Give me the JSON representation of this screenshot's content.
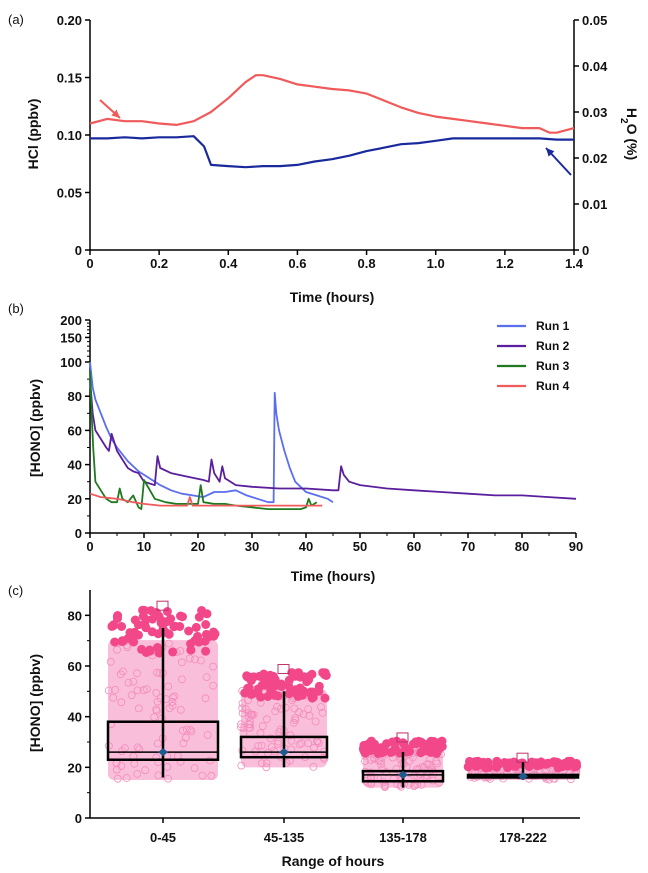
{
  "chart_data": [
    {
      "type": "line",
      "panel_label": "(a)",
      "xlabel": "Time (hours)",
      "ylabel": "HCl (ppbv)",
      "y2label_main": "H",
      "y2label_sub": "2",
      "y2label_rest": "O (%)",
      "xlim": [
        0,
        1.4
      ],
      "ylim": [
        0,
        0.2
      ],
      "y2lim": [
        0,
        0.05
      ],
      "x_ticks": [
        0,
        0.2,
        0.4,
        0.6,
        0.8,
        1.0,
        1.2,
        1.4
      ],
      "x_tick_labels": [
        "0",
        "0.2",
        "0.4",
        "0.6",
        "0.8",
        "1.0",
        "1.2",
        "1.4"
      ],
      "y_ticks": [
        0,
        0.05,
        0.1,
        0.15,
        0.2
      ],
      "y_tick_labels": [
        "0",
        "0.05",
        "0.10",
        "0.15",
        "0.20"
      ],
      "y2_ticks": [
        0,
        0.01,
        0.02,
        0.03,
        0.04,
        0.05
      ],
      "y2_tick_labels": [
        "0",
        "0.01",
        "0.02",
        "0.03",
        "0.04",
        "0.05"
      ],
      "series": [
        {
          "axis": "left",
          "color": "#1a2a9c",
          "x": [
            0,
            0.05,
            0.1,
            0.15,
            0.2,
            0.25,
            0.3,
            0.33,
            0.35,
            0.4,
            0.45,
            0.5,
            0.55,
            0.6,
            0.65,
            0.7,
            0.75,
            0.8,
            0.85,
            0.9,
            0.95,
            1.0,
            1.05,
            1.1,
            1.15,
            1.2,
            1.25,
            1.3,
            1.35,
            1.4
          ],
          "y": [
            0.097,
            0.097,
            0.098,
            0.097,
            0.098,
            0.098,
            0.099,
            0.09,
            0.074,
            0.073,
            0.072,
            0.073,
            0.073,
            0.074,
            0.077,
            0.079,
            0.082,
            0.086,
            0.089,
            0.092,
            0.093,
            0.095,
            0.097,
            0.097,
            0.097,
            0.097,
            0.097,
            0.097,
            0.096,
            0.096
          ]
        },
        {
          "axis": "right",
          "color": "#f05a5a",
          "x": [
            0,
            0.05,
            0.1,
            0.15,
            0.2,
            0.25,
            0.3,
            0.35,
            0.4,
            0.45,
            0.48,
            0.5,
            0.55,
            0.6,
            0.65,
            0.7,
            0.75,
            0.8,
            0.85,
            0.9,
            0.95,
            1.0,
            1.05,
            1.1,
            1.15,
            1.2,
            1.25,
            1.3,
            1.33,
            1.35,
            1.4
          ],
          "y": [
            0.0275,
            0.0285,
            0.028,
            0.028,
            0.0275,
            0.0272,
            0.028,
            0.03,
            0.033,
            0.0365,
            0.038,
            0.038,
            0.0372,
            0.036,
            0.0355,
            0.035,
            0.0347,
            0.034,
            0.0325,
            0.031,
            0.0298,
            0.029,
            0.0285,
            0.028,
            0.0275,
            0.027,
            0.0265,
            0.0265,
            0.0255,
            0.0255,
            0.0265
          ]
        }
      ]
    },
    {
      "type": "line",
      "panel_label": "(b)",
      "xlabel": "Time (hours)",
      "ylabel": "[HONO] (ppbv)",
      "xlim": [
        0,
        90
      ],
      "x_ticks": [
        0,
        10,
        20,
        30,
        40,
        50,
        60,
        70,
        80,
        90
      ],
      "x_tick_labels": [
        "0",
        "10",
        "20",
        "30",
        "40",
        "50",
        "60",
        "70",
        "80",
        "90"
      ],
      "y_scale": "linear below 100, log from 100 to 200",
      "y_tick_labels": [
        "0",
        "20",
        "40",
        "60",
        "80",
        "100",
        "150",
        "200"
      ],
      "legend_position": "top-right outside",
      "series": [
        {
          "name": "Run 1",
          "color": "#5a6ef0",
          "x": [
            0,
            0.5,
            1,
            2,
            3,
            4,
            5,
            7,
            9,
            11,
            13,
            15,
            17,
            19,
            21,
            23,
            25,
            27,
            29,
            31,
            33,
            34,
            34.2,
            34.5,
            35,
            36,
            37,
            38,
            40,
            42,
            44,
            45
          ],
          "y": [
            100,
            85,
            78,
            70,
            62,
            55,
            50,
            42,
            36,
            32,
            28,
            25,
            23,
            22,
            21,
            24,
            24,
            25,
            22,
            20,
            18,
            18,
            82,
            70,
            60,
            48,
            38,
            30,
            24,
            22,
            20,
            18
          ]
        },
        {
          "name": "Run 2",
          "color": "#5a1f9c",
          "x": [
            0,
            0.5,
            1,
            2,
            3,
            3.5,
            4,
            5,
            6,
            7,
            8,
            9,
            10,
            12,
            12.5,
            13,
            15,
            18,
            21,
            22,
            22.5,
            23,
            24,
            24.5,
            25,
            27,
            30,
            35,
            40,
            45,
            46,
            46.5,
            47,
            48,
            50,
            55,
            60,
            65,
            70,
            75,
            80,
            85,
            90
          ],
          "y": [
            90,
            70,
            60,
            55,
            50,
            48,
            58,
            48,
            43,
            38,
            36,
            35,
            30,
            28,
            45,
            38,
            35,
            33,
            31,
            30,
            43,
            35,
            30,
            39,
            32,
            28,
            27,
            26,
            26,
            25,
            25,
            39,
            34,
            30,
            28,
            26,
            25,
            24,
            23,
            22,
            22,
            21,
            20
          ]
        },
        {
          "name": "Run 3",
          "color": "#1f7a1f",
          "x": [
            0,
            0.3,
            0.6,
            1,
            2,
            3,
            4,
            5,
            5.5,
            6,
            7,
            8,
            9,
            9.5,
            10,
            12,
            14,
            16,
            18,
            20,
            20.5,
            21,
            23,
            25,
            27,
            30,
            33,
            36,
            39,
            40,
            40.5,
            41,
            42
          ],
          "y": [
            95,
            70,
            50,
            30,
            25,
            20,
            18,
            18,
            26,
            20,
            18,
            22,
            15,
            14,
            31,
            20,
            18,
            17,
            17,
            17,
            28,
            18,
            17,
            17,
            16,
            15,
            14,
            14,
            14,
            15,
            20,
            16,
            18
          ]
        },
        {
          "name": "Run 4",
          "color": "#f05a5a",
          "x": [
            0,
            2,
            5,
            8,
            10,
            13,
            16,
            18,
            18.5,
            19,
            21,
            25,
            30,
            35,
            40,
            43
          ],
          "y": [
            23,
            21,
            20,
            18,
            17,
            16,
            16,
            16,
            21,
            16,
            16,
            16,
            16,
            16,
            16,
            16
          ]
        }
      ]
    },
    {
      "type": "box",
      "panel_label": "(c)",
      "xlabel": "Range of hours",
      "ylabel": "[HONO] (ppbv)",
      "ylim": [
        0,
        90
      ],
      "y_ticks": [
        0,
        20,
        40,
        60,
        80
      ],
      "y_tick_labels": [
        "0",
        "20",
        "40",
        "60",
        "80"
      ],
      "categories": [
        "0-45",
        "45-135",
        "135-178",
        "178-222"
      ],
      "box": [
        {
          "q1": 23,
          "median": 26,
          "q3": 38,
          "whisker_low": 16,
          "whisker_high": 75,
          "mean": 26,
          "data_min": 15,
          "data_max": 84
        },
        {
          "q1": 24,
          "median": 26,
          "q3": 32,
          "whisker_low": 20,
          "whisker_high": 50,
          "mean": 26,
          "data_min": 20,
          "data_max": 59
        },
        {
          "q1": 14.5,
          "median": 17,
          "q3": 18.5,
          "whisker_low": 12,
          "whisker_high": 26,
          "mean": 17,
          "data_min": 12,
          "data_max": 32
        },
        {
          "q1": 16,
          "median": 16.5,
          "q3": 17,
          "whisker_low": 15,
          "whisker_high": 22,
          "mean": 16.5,
          "data_min": 15,
          "data_max": 24
        }
      ],
      "colors": {
        "points_light": "#f7a8cc",
        "points_dark": "#f2488a",
        "box": "#000000",
        "mean_marker": "#1f5a8c"
      }
    }
  ]
}
